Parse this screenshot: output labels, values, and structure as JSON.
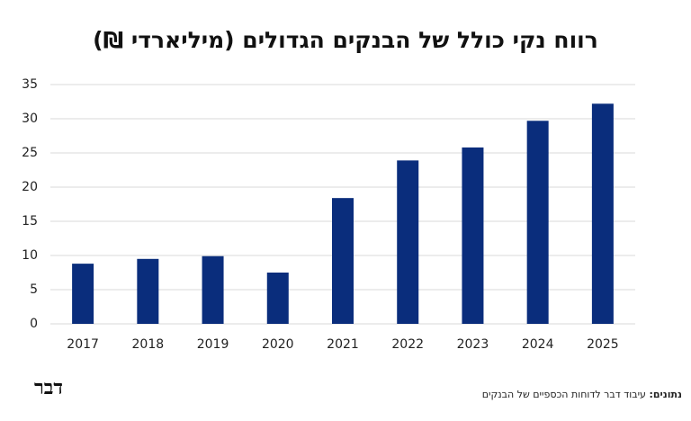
{
  "chart_data": {
    "type": "bar",
    "title": "רווח נקי כולל של הבנקים הגדולים (מיליארדי ₪)",
    "categories": [
      "2017",
      "2018",
      "2019",
      "2020",
      "2021",
      "2022",
      "2023",
      "2024",
      "2025"
    ],
    "values": [
      8.8,
      9.5,
      9.9,
      7.5,
      18.4,
      23.9,
      25.8,
      29.7,
      32.2
    ],
    "color": "#0a2d7c",
    "ylim": [
      0,
      35
    ],
    "yticks": [
      0,
      5,
      10,
      15,
      20,
      25,
      30,
      35
    ],
    "grid": true,
    "source_label": "נתונים:",
    "source": "עיבוד דבר לדוחות הכספיים של הבנקים",
    "logo": "דבר"
  }
}
